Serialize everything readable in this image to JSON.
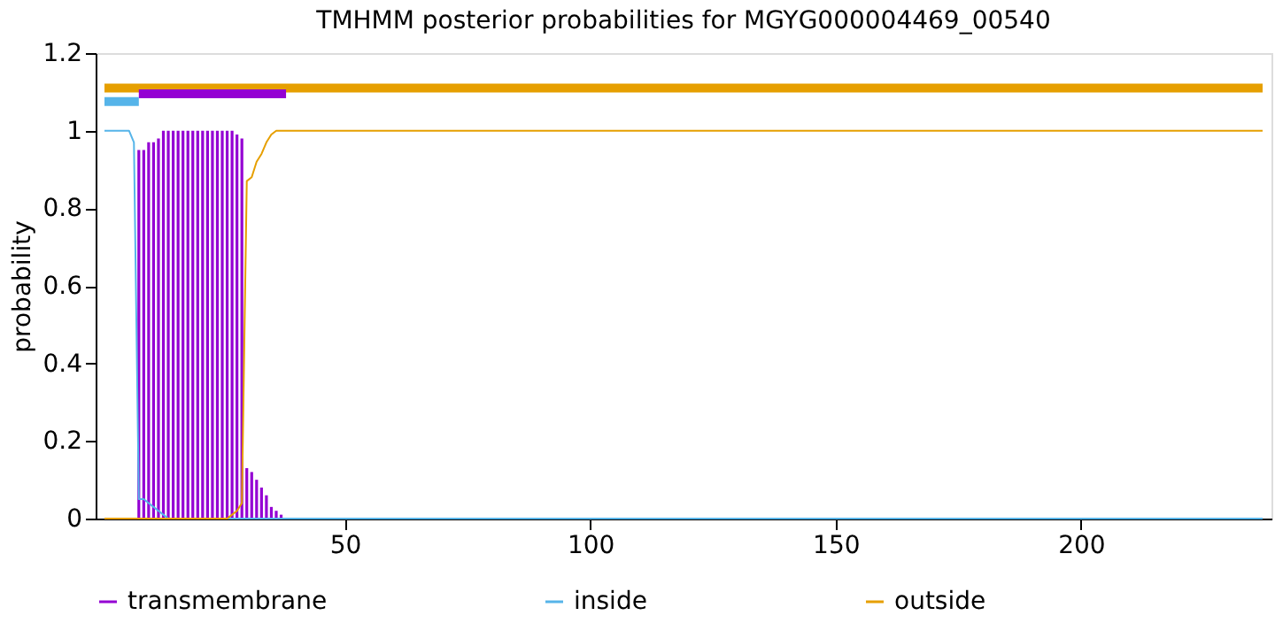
{
  "chart_data": {
    "type": "line",
    "title": "TMHMM posterior probabilities for MGYG000004469_00540",
    "ylabel": "probability",
    "xlim": [
      1,
      237
    ],
    "xticks": [
      50,
      100,
      150,
      200
    ],
    "ylim": [
      0,
      1.2
    ],
    "yticks": [
      0,
      0.2,
      0.4,
      0.6,
      0.8,
      1,
      1.2
    ],
    "grid": false,
    "legend": "bottom",
    "marker": "none",
    "line_style": "solid",
    "series": [
      {
        "name": "transmembrane",
        "type": "bar",
        "color": "#9400d3",
        "x": [
          8,
          9,
          10,
          11,
          12,
          13,
          14,
          15,
          16,
          17,
          18,
          19,
          20,
          21,
          22,
          23,
          24,
          25,
          26,
          27,
          28,
          29,
          30,
          31,
          32,
          33,
          34,
          35,
          36,
          37
        ],
        "values": [
          0.95,
          0.95,
          0.97,
          0.97,
          0.98,
          1,
          1,
          1,
          1,
          1,
          1,
          1,
          1,
          1,
          1,
          1,
          1,
          1,
          1,
          1,
          0.99,
          0.98,
          0.13,
          0.12,
          0.1,
          0.08,
          0.06,
          0.03,
          0.02,
          0.01
        ]
      },
      {
        "name": "inside",
        "color": "#56b4e9",
        "x": [
          1,
          2,
          3,
          4,
          5,
          6,
          7,
          8,
          9,
          10,
          11,
          12,
          13,
          14,
          237
        ],
        "values": [
          1,
          1,
          1,
          1,
          1,
          1,
          0.97,
          0.05,
          0.05,
          0.04,
          0.03,
          0.02,
          0.01,
          0,
          0
        ]
      },
      {
        "name": "outside",
        "color": "#e69f00",
        "x": [
          1,
          26,
          27,
          28,
          29,
          30,
          31,
          32,
          33,
          34,
          35,
          36,
          237
        ],
        "values": [
          0,
          0,
          0.01,
          0.02,
          0.04,
          0.87,
          0.88,
          0.92,
          0.94,
          0.97,
          0.99,
          1,
          1
        ]
      },
      {
        "color": "#e69f00",
        "x": [
          1,
          237
        ],
        "values": [
          1.11,
          1.11
        ]
      },
      {
        "color": "#9400d3",
        "x": [
          8,
          38
        ],
        "values": [
          1.095,
          1.095
        ]
      },
      {
        "color": "#56b4e9",
        "x": [
          1,
          8
        ],
        "values": [
          1.075,
          1.075
        ]
      }
    ]
  }
}
